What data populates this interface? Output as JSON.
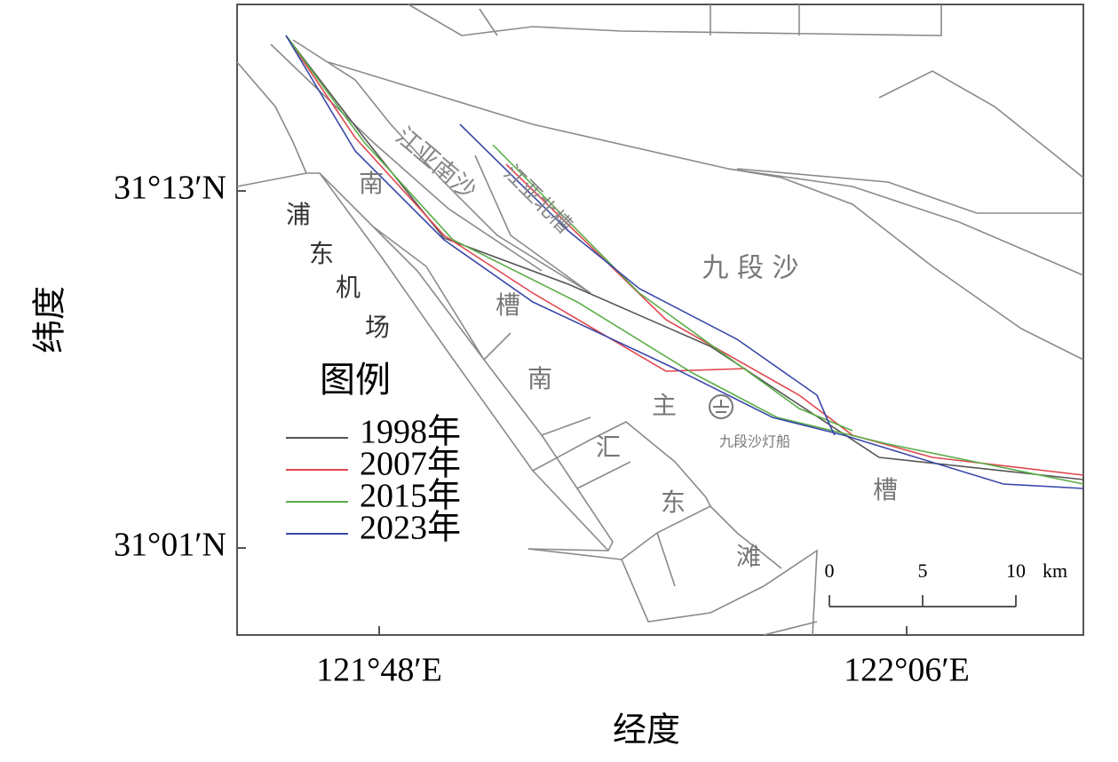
{
  "axes": {
    "y_title": "纬度",
    "x_title": "经度",
    "yticks": [
      "31°13′N",
      "31°01′N"
    ],
    "xticks": [
      "121°48′E",
      "122°06′E"
    ]
  },
  "labels": [
    "江亚南沙",
    "江亚北槽",
    "南",
    "槽",
    "九 段 沙",
    "浦",
    "东",
    "机",
    "场",
    "南",
    "汇",
    "东",
    "滩",
    "主",
    "槽",
    "九段沙灯船"
  ],
  "legend": {
    "title": "图例",
    "items": [
      {
        "label": "1998年",
        "color": "#555555"
      },
      {
        "label": "2007年",
        "color": "#e0484f"
      },
      {
        "label": "2015年",
        "color": "#5aae48"
      },
      {
        "label": "2023年",
        "color": "#3a48a8"
      }
    ]
  },
  "scale_bar": {
    "ticks": [
      0,
      5,
      10
    ],
    "unit": "km"
  }
}
